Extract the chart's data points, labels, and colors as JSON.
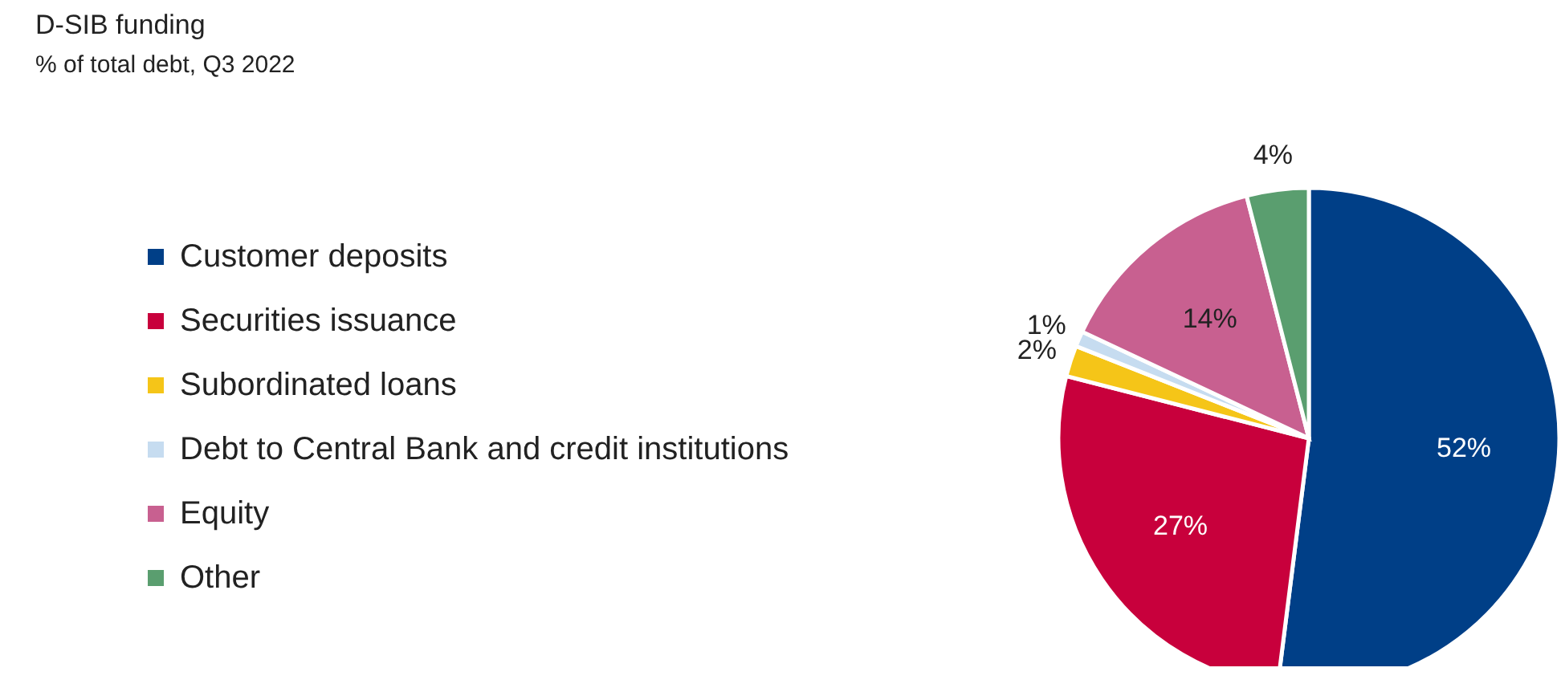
{
  "chart_data": {
    "type": "pie",
    "title": "D-SIB funding",
    "subtitle": "% of total debt, Q3 2022",
    "categories": [
      "Customer deposits",
      "Securities issuance",
      "Subordinated loans",
      "Debt to Central Bank and credit institutions",
      "Equity",
      "Other"
    ],
    "values": [
      52,
      27,
      2,
      1,
      14,
      4
    ],
    "colors": [
      "#003f87",
      "#c8003c",
      "#f5c518",
      "#c6dcf0",
      "#c86090",
      "#5a9e6f"
    ],
    "value_labels": [
      "52%",
      "27%",
      "2%",
      "1%",
      "14%",
      "4%"
    ],
    "legend": "left"
  }
}
